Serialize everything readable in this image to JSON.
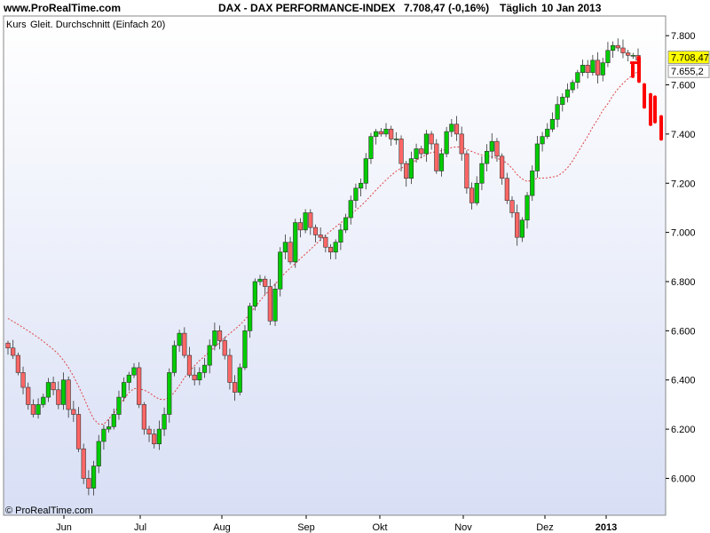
{
  "header": {
    "site": "www.ProRealTime.com",
    "title": "DAX - DAX PERFORMANCE-INDEX",
    "quote": "7.708,47 (-0,16%)",
    "period": "Täglich",
    "date": "10 Jan 2013"
  },
  "legend": {
    "price_label": "Kurs",
    "ma_label": "Gleit. Durchschnitt (Einfach 20)"
  },
  "copyright": "© ProRealTime.com",
  "colors": {
    "up": "#00cc00",
    "down": "#ff6666",
    "ma": "#dd4444",
    "projection": "#ff0000",
    "last_price_bg": "#ffff00",
    "bg_top": "#ffffff",
    "bg_bottom": "#d8dff5"
  },
  "chart_data": {
    "type": "candlestick",
    "ylim": [
      5850,
      7880
    ],
    "y_ticks": [
      6000,
      6200,
      6400,
      6600,
      6800,
      7000,
      7200,
      7400,
      7600,
      7800
    ],
    "y_tick_labels": [
      "6.000",
      "6.200",
      "6.400",
      "6.600",
      "6.800",
      "7.000",
      "7.200",
      "7.400",
      "7.600",
      "7.800"
    ],
    "x_labels": [
      "Jun",
      "Jul",
      "Aug",
      "Sep",
      "Okt",
      "Nov",
      "Dez",
      "2013"
    ],
    "last_price": {
      "value": 7708.47,
      "label": "7.708,47"
    },
    "ma_last": {
      "value": 7655.2,
      "label": "7.655,2"
    },
    "closes": [
      6530,
      6500,
      6430,
      6370,
      6300,
      6260,
      6300,
      6330,
      6390,
      6360,
      6300,
      6400,
      6280,
      6260,
      6120,
      6000,
      5960,
      6050,
      6150,
      6200,
      6210,
      6260,
      6330,
      6390,
      6420,
      6450,
      6300,
      6200,
      6180,
      6140,
      6200,
      6260,
      6430,
      6540,
      6590,
      6500,
      6420,
      6400,
      6430,
      6460,
      6540,
      6600,
      6560,
      6500,
      6390,
      6350,
      6450,
      6600,
      6700,
      6800,
      6810,
      6780,
      6640,
      6770,
      6920,
      6960,
      6880,
      7040,
      7010,
      7080,
      7020,
      6990,
      6980,
      6940,
      6920,
      6960,
      7010,
      7060,
      7130,
      7180,
      7200,
      7300,
      7390,
      7410,
      7400,
      7420,
      7380,
      7380,
      7280,
      7220,
      7300,
      7340,
      7320,
      7400,
      7360,
      7250,
      7320,
      7410,
      7440,
      7400,
      7320,
      7180,
      7120,
      7200,
      7280,
      7330,
      7370,
      7310,
      7220,
      7130,
      7080,
      6980,
      7050,
      7150,
      7250,
      7360,
      7390,
      7420,
      7460,
      7520,
      7550,
      7580,
      7610,
      7650,
      7680,
      7650,
      7700,
      7640,
      7690,
      7740,
      7760,
      7750,
      7730,
      7720,
      7720,
      7700
    ],
    "ma": [
      6650,
      6638,
      6626,
      6613,
      6600,
      6586,
      6572,
      6557,
      6541,
      6524,
      6505,
      6480,
      6450,
      6415,
      6375,
      6330,
      6283,
      6241,
      6221,
      6220,
      6242,
      6266,
      6293,
      6322,
      6349,
      6365,
      6364,
      6359,
      6349,
      6334,
      6322,
      6320,
      6330,
      6349,
      6378,
      6409,
      6436,
      6458,
      6479,
      6497,
      6515,
      6534,
      6553,
      6572,
      6589,
      6606,
      6624,
      6645,
      6670,
      6696,
      6722,
      6747,
      6768,
      6790,
      6813,
      6836,
      6855,
      6874,
      6893,
      6912,
      6931,
      6951,
      6970,
      6989,
      7006,
      7023,
      7039,
      7055,
      7072,
      7090,
      7108,
      7128,
      7150,
      7172,
      7193,
      7213,
      7232,
      7249,
      7261,
      7272,
      7283,
      7294,
      7305,
      7316,
      7325,
      7328,
      7332,
      7338,
      7345,
      7348,
      7346,
      7338,
      7329,
      7321,
      7315,
      7310,
      7307,
      7301,
      7294,
      7281,
      7261,
      7235,
      7217,
      7207,
      7213,
      7220,
      7221,
      7222,
      7225,
      7230,
      7243,
      7263,
      7291,
      7324,
      7358,
      7391,
      7429,
      7460,
      7496,
      7523,
      7557,
      7584,
      7606,
      7625,
      7641,
      7655
    ]
  }
}
